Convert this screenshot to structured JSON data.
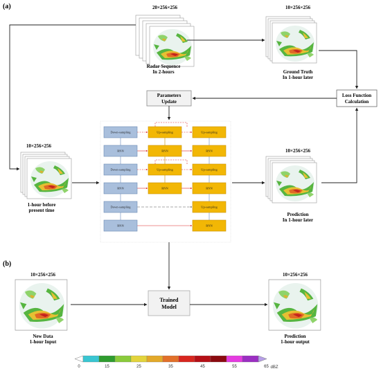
{
  "panel_a": {
    "label": "(a)",
    "radar_sequence": {
      "dims": "20×256×256",
      "line1": "Radar Sequence",
      "line2": "In 2-hours"
    },
    "ground_truth": {
      "dims": "10×256×256",
      "line1": "Ground Truth",
      "line2": "In 1-hour later"
    },
    "input": {
      "dims": "10×256×256",
      "line1": "1-hour before",
      "line2": "present time"
    },
    "prediction": {
      "dims": "10×256×256",
      "line1": "Prediction",
      "line2": "In 1-hour later"
    },
    "parameters_update": {
      "line1": "Parameters",
      "line2": "Update"
    },
    "loss_function": {
      "line1": "Loss Function",
      "line2": "Calculation"
    },
    "network": {
      "down_sampling": "Down-sampling",
      "up_sampling": "Up-sampling",
      "rnn": "RNN"
    }
  },
  "panel_b": {
    "label": "(b)",
    "input": {
      "dims": "10×256×256",
      "line1": "New Data",
      "line2": "1-hour Input"
    },
    "model": {
      "line1": "Trained",
      "line2": "Model"
    },
    "output": {
      "dims": "10×256×256",
      "line1": "Prediction",
      "line2": "1-hour output"
    }
  },
  "colorbar": {
    "unit": "dBZ",
    "ticks": [
      "0",
      "15",
      "25",
      "35",
      "45",
      "55",
      "65"
    ],
    "colors": [
      "#ffffff",
      "#39c6d2",
      "#2f9c2f",
      "#8acb3b",
      "#e3d43c",
      "#e3a92a",
      "#e2702a",
      "#d8261f",
      "#b50f16",
      "#8b0a10",
      "#e53be0",
      "#9b2fc2",
      "#b79fe8"
    ]
  }
}
